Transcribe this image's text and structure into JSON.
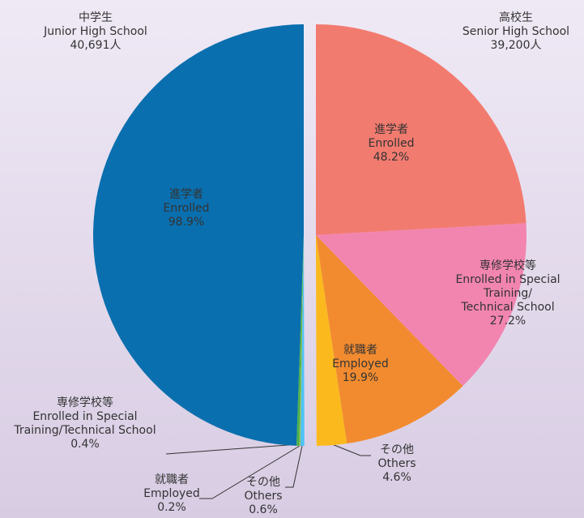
{
  "chart_data": [
    {
      "type": "pie",
      "title": [
        "中学生",
        "Junior High School",
        "40,691人"
      ],
      "categories": [
        [
          "進学者",
          "Enrolled"
        ],
        [
          "専修学校等",
          "Enrolled in Special",
          "Training/Technical School"
        ],
        [
          "就職者",
          "Employed"
        ],
        [
          "その他",
          "Others"
        ]
      ],
      "values": [
        98.9,
        0.4,
        0.2,
        0.6
      ],
      "value_labels": [
        "98.9%",
        "0.4%",
        "0.2%",
        "0.6%"
      ],
      "colors": [
        "#0a6fae",
        "#4caf50",
        "#8bc34a",
        "#4fc3f7"
      ]
    },
    {
      "type": "pie",
      "title": [
        "高校生",
        "Senior High School",
        "39,200人"
      ],
      "categories": [
        [
          "進学者",
          "Enrolled"
        ],
        [
          "専修学校等",
          "Enrolled in Special",
          "Training/",
          "Technical School"
        ],
        [
          "就職者",
          "Employed"
        ],
        [
          "その他",
          "Others"
        ]
      ],
      "values": [
        48.2,
        27.2,
        19.9,
        4.6
      ],
      "value_labels": [
        "48.2%",
        "27.2%",
        "19.9%",
        "4.6%"
      ],
      "colors": [
        "#f27b6f",
        "#f285b0",
        "#f28b30",
        "#fbb91d"
      ]
    }
  ]
}
